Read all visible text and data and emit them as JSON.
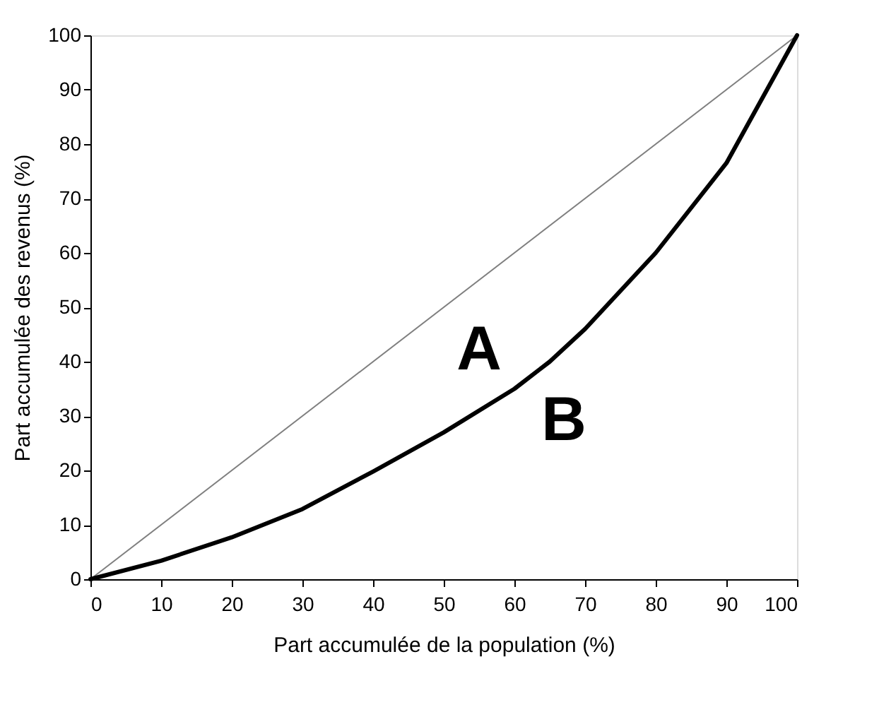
{
  "chart_data": {
    "type": "line",
    "xlabel": "Part accumulée de la population (%)",
    "ylabel": "Part accumulée des revenus (%)",
    "xlim": [
      0,
      100
    ],
    "ylim": [
      0,
      100
    ],
    "xticks": [
      0,
      10,
      20,
      30,
      40,
      50,
      60,
      70,
      80,
      90,
      100
    ],
    "yticks": [
      0,
      10,
      20,
      30,
      40,
      50,
      60,
      70,
      80,
      90,
      100
    ],
    "grid": false,
    "marker": "none",
    "line_style": "solid",
    "series": [
      {
        "color": "#808080",
        "x": [
          0,
          100
        ],
        "values": [
          0,
          100
        ]
      },
      {
        "color": "#000000",
        "x": [
          0,
          10,
          20,
          30,
          40,
          50,
          60,
          65,
          70,
          80,
          90,
          100
        ],
        "values": [
          0,
          3.4,
          7.7,
          12.9,
          19.8,
          27,
          35,
          40,
          46,
          60,
          76.5,
          100
        ]
      }
    ],
    "annotations": [
      "A",
      "B"
    ]
  }
}
